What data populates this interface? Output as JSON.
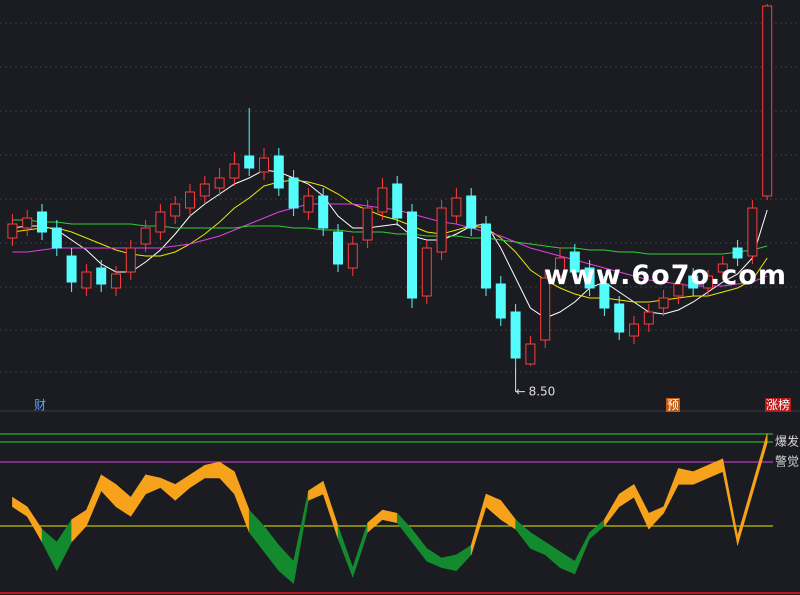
{
  "events": [
    "财",
    "预",
    "涨榜"
  ],
  "watermark": "www.6o7o.com",
  "chart_data": [
    {
      "type": "candlestick",
      "up_color": "#ff3b3b",
      "down_color": "#54fcfc",
      "ylim": [
        8.29,
        10.34
      ],
      "open": [
        9.15,
        9.2,
        9.28,
        9.2,
        9.06,
        8.9,
        9.0,
        8.9,
        8.98,
        9.12,
        9.18,
        9.26,
        9.3,
        9.36,
        9.4,
        9.45,
        9.56,
        9.48,
        9.56,
        9.45,
        9.28,
        9.36,
        9.18,
        9.0,
        9.14,
        9.28,
        9.42,
        9.28,
        8.86,
        9.08,
        9.26,
        9.36,
        9.22,
        8.92,
        8.78,
        8.52,
        8.64,
        8.96,
        9.08,
        9.0,
        8.92,
        8.82,
        8.66,
        8.72,
        8.8,
        8.86,
        8.96,
        8.9,
        8.98,
        9.1,
        9.06,
        9.36
      ],
      "high": [
        9.27,
        9.29,
        9.32,
        9.24,
        9.1,
        9.02,
        9.04,
        9.01,
        9.14,
        9.24,
        9.32,
        9.36,
        9.42,
        9.46,
        9.5,
        9.58,
        9.8,
        9.6,
        9.6,
        9.49,
        9.4,
        9.4,
        9.22,
        9.16,
        9.34,
        9.45,
        9.46,
        9.32,
        9.14,
        9.34,
        9.4,
        9.4,
        9.26,
        8.96,
        8.82,
        8.66,
        8.99,
        9.1,
        9.12,
        9.04,
        8.96,
        8.86,
        8.76,
        8.82,
        8.89,
        8.96,
        9.0,
        8.99,
        9.06,
        9.14,
        9.34,
        10.32
      ],
      "low": [
        9.11,
        9.16,
        9.14,
        9.06,
        8.88,
        8.86,
        8.88,
        8.86,
        8.94,
        9.08,
        9.14,
        9.22,
        9.26,
        9.32,
        9.36,
        9.41,
        9.46,
        9.44,
        9.36,
        9.26,
        9.24,
        9.16,
        8.98,
        8.96,
        9.1,
        9.24,
        9.21,
        8.8,
        8.82,
        9.04,
        9.22,
        9.16,
        8.86,
        8.71,
        8.5,
        8.51,
        8.6,
        8.92,
        8.94,
        8.86,
        8.76,
        8.64,
        8.62,
        8.68,
        8.76,
        8.82,
        8.86,
        8.86,
        8.94,
        9.01,
        9.02,
        9.34
      ],
      "close": [
        9.22,
        9.25,
        9.18,
        9.1,
        8.93,
        8.98,
        8.92,
        8.97,
        9.1,
        9.2,
        9.28,
        9.32,
        9.38,
        9.42,
        9.45,
        9.52,
        9.5,
        9.55,
        9.4,
        9.3,
        9.36,
        9.2,
        9.02,
        9.12,
        9.3,
        9.4,
        9.25,
        8.85,
        9.1,
        9.3,
        9.35,
        9.2,
        8.9,
        8.75,
        8.55,
        8.62,
        8.95,
        9.05,
        8.98,
        8.9,
        8.8,
        8.68,
        8.72,
        8.78,
        8.85,
        8.92,
        8.9,
        8.96,
        9.02,
        9.05,
        9.3,
        10.31
      ],
      "lines": [
        {
          "color": "#ffffff",
          "values": [
            9.2,
            9.21,
            9.21,
            9.19,
            9.14,
            9.09,
            9.02,
            8.98,
            8.98,
            9.03,
            9.09,
            9.17,
            9.26,
            9.32,
            9.37,
            9.42,
            9.45,
            9.49,
            9.48,
            9.45,
            9.42,
            9.36,
            9.26,
            9.2,
            9.2,
            9.21,
            9.22,
            9.16,
            9.14,
            9.14,
            9.17,
            9.21,
            9.22,
            9.1,
            8.95,
            8.8,
            8.75,
            8.78,
            8.83,
            8.9,
            8.93,
            8.88,
            8.83,
            8.78,
            8.77,
            8.79,
            8.83,
            8.88,
            8.93,
            8.97,
            9.05,
            9.29
          ]
        },
        {
          "color": "#e8e800",
          "values": [
            9.18,
            9.19,
            9.2,
            9.2,
            9.18,
            9.15,
            9.12,
            9.09,
            9.07,
            9.06,
            9.06,
            9.08,
            9.12,
            9.17,
            9.23,
            9.3,
            9.35,
            9.41,
            9.43,
            9.44,
            9.43,
            9.41,
            9.37,
            9.32,
            9.29,
            9.26,
            9.24,
            9.21,
            9.18,
            9.17,
            9.19,
            9.21,
            9.2,
            9.15,
            9.08,
            8.99,
            8.94,
            8.9,
            8.87,
            8.85,
            8.85,
            8.84,
            8.83,
            8.83,
            8.84,
            8.85,
            8.86,
            8.86,
            8.88,
            8.9,
            8.94,
            9.05
          ]
        },
        {
          "color": "#e040e0",
          "values": [
            9.08,
            9.08,
            9.09,
            9.1,
            9.1,
            9.1,
            9.1,
            9.1,
            9.1,
            9.1,
            9.1,
            9.11,
            9.12,
            9.14,
            9.16,
            9.19,
            9.22,
            9.25,
            9.28,
            9.3,
            9.32,
            9.32,
            9.32,
            9.32,
            9.31,
            9.3,
            9.29,
            9.27,
            9.25,
            9.23,
            9.22,
            9.2,
            9.18,
            9.16,
            9.13,
            9.1,
            9.08,
            9.06,
            9.04,
            9.02,
            9.0,
            8.98,
            8.96,
            8.94,
            8.93,
            8.92,
            8.91,
            8.91,
            8.91,
            8.92,
            8.93,
            8.96
          ]
        },
        {
          "color": "#30d030",
          "values": [
            9.24,
            9.24,
            9.23,
            9.23,
            9.22,
            9.22,
            9.22,
            9.22,
            9.22,
            9.21,
            9.21,
            9.2,
            9.2,
            9.2,
            9.2,
            9.2,
            9.21,
            9.21,
            9.21,
            9.2,
            9.2,
            9.19,
            9.19,
            9.18,
            9.18,
            9.18,
            9.17,
            9.17,
            9.16,
            9.16,
            9.16,
            9.15,
            9.15,
            9.14,
            9.13,
            9.12,
            9.11,
            9.1,
            9.1,
            9.09,
            9.09,
            9.08,
            9.08,
            9.07,
            9.07,
            9.07,
            9.07,
            9.07,
            9.07,
            9.08,
            9.09,
            9.11
          ]
        }
      ],
      "min_label": {
        "value": 8.5,
        "label": "8.50"
      }
    },
    {
      "type": "band",
      "ylim": [
        0,
        100
      ],
      "split": 40,
      "pos_color": "#f7a21b",
      "neg_color": "#138a2e",
      "upper": [
        58,
        52,
        38,
        30,
        44,
        50,
        72,
        66,
        58,
        72,
        70,
        66,
        72,
        78,
        80,
        74,
        50,
        40,
        28,
        18,
        62,
        68,
        40,
        14,
        42,
        50,
        48,
        38,
        26,
        20,
        22,
        28,
        60,
        56,
        44,
        36,
        30,
        24,
        18,
        36,
        44,
        60,
        66,
        48,
        52,
        76,
        74,
        78,
        82,
        34,
        66,
        98
      ],
      "lower": [
        52,
        46,
        30,
        12,
        30,
        40,
        62,
        52,
        46,
        60,
        64,
        56,
        64,
        70,
        70,
        60,
        36,
        24,
        12,
        4,
        56,
        60,
        32,
        8,
        36,
        44,
        42,
        30,
        18,
        14,
        12,
        22,
        52,
        44,
        38,
        26,
        22,
        14,
        10,
        32,
        40,
        52,
        58,
        38,
        48,
        66,
        66,
        70,
        74,
        28,
        60,
        92
      ],
      "levels": [
        {
          "value": 40,
          "color": "#e8e800"
        },
        {
          "value": 80,
          "color": "#e040e0",
          "label": "警觉"
        },
        {
          "value": 92.5,
          "color": "#30d030",
          "label": "爆发"
        },
        {
          "value": 97.5,
          "color": "#30d030"
        }
      ]
    }
  ]
}
